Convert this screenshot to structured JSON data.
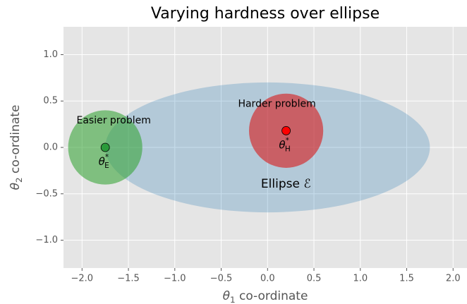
{
  "chart_data": {
    "type": "regions",
    "title": "Varying hardness over ellipse",
    "xlabel": {
      "symbol": "θ",
      "sub": "1",
      "text": " co-ordinate"
    },
    "ylabel": {
      "symbol": "θ",
      "sub": "2",
      "text": " co-ordinate"
    },
    "xlim": [
      -2.2,
      2.15
    ],
    "ylim": [
      -1.3,
      1.3
    ],
    "xticks": [
      {
        "value": -2.0,
        "label": "−2.0"
      },
      {
        "value": -1.5,
        "label": "−1.5"
      },
      {
        "value": -1.0,
        "label": "−1.0"
      },
      {
        "value": -0.5,
        "label": "−0.5"
      },
      {
        "value": 0.0,
        "label": "0.0"
      },
      {
        "value": 0.5,
        "label": "0.5"
      },
      {
        "value": 1.0,
        "label": "1.0"
      },
      {
        "value": 1.5,
        "label": "1.5"
      },
      {
        "value": 2.0,
        "label": "2.0"
      }
    ],
    "yticks": [
      {
        "value": -1.0,
        "label": "−1.0"
      },
      {
        "value": -0.5,
        "label": "−0.5"
      },
      {
        "value": 0.0,
        "label": "0.0"
      },
      {
        "value": 0.5,
        "label": "0.5"
      },
      {
        "value": 1.0,
        "label": "1.0"
      }
    ],
    "grid": true,
    "regions": [
      {
        "name": "Ellipse ℰ",
        "cx": 0,
        "cy": 0,
        "rx": 1.75,
        "ry": 0.7,
        "color": "rgba(31,119,180,0.25)"
      },
      {
        "name": "Easier problem",
        "cx": -1.75,
        "cy": 0,
        "rx": 0.4,
        "ry": 0.4,
        "color": "rgba(44,160,44,0.55)"
      },
      {
        "name": "Harder problem",
        "cx": 0.2,
        "cy": 0.18,
        "rx": 0.4,
        "ry": 0.4,
        "color": "rgba(214,39,40,0.65)"
      }
    ],
    "points": [
      {
        "x": -1.75,
        "y": 0,
        "color": "#2a9a3a",
        "label": {
          "symbol": "θ",
          "sup": "*",
          "sub": "E"
        }
      },
      {
        "x": 0.2,
        "y": 0.18,
        "color": "#ff0000",
        "label": {
          "symbol": "θ",
          "sup": "*",
          "sub": "H"
        }
      }
    ]
  }
}
